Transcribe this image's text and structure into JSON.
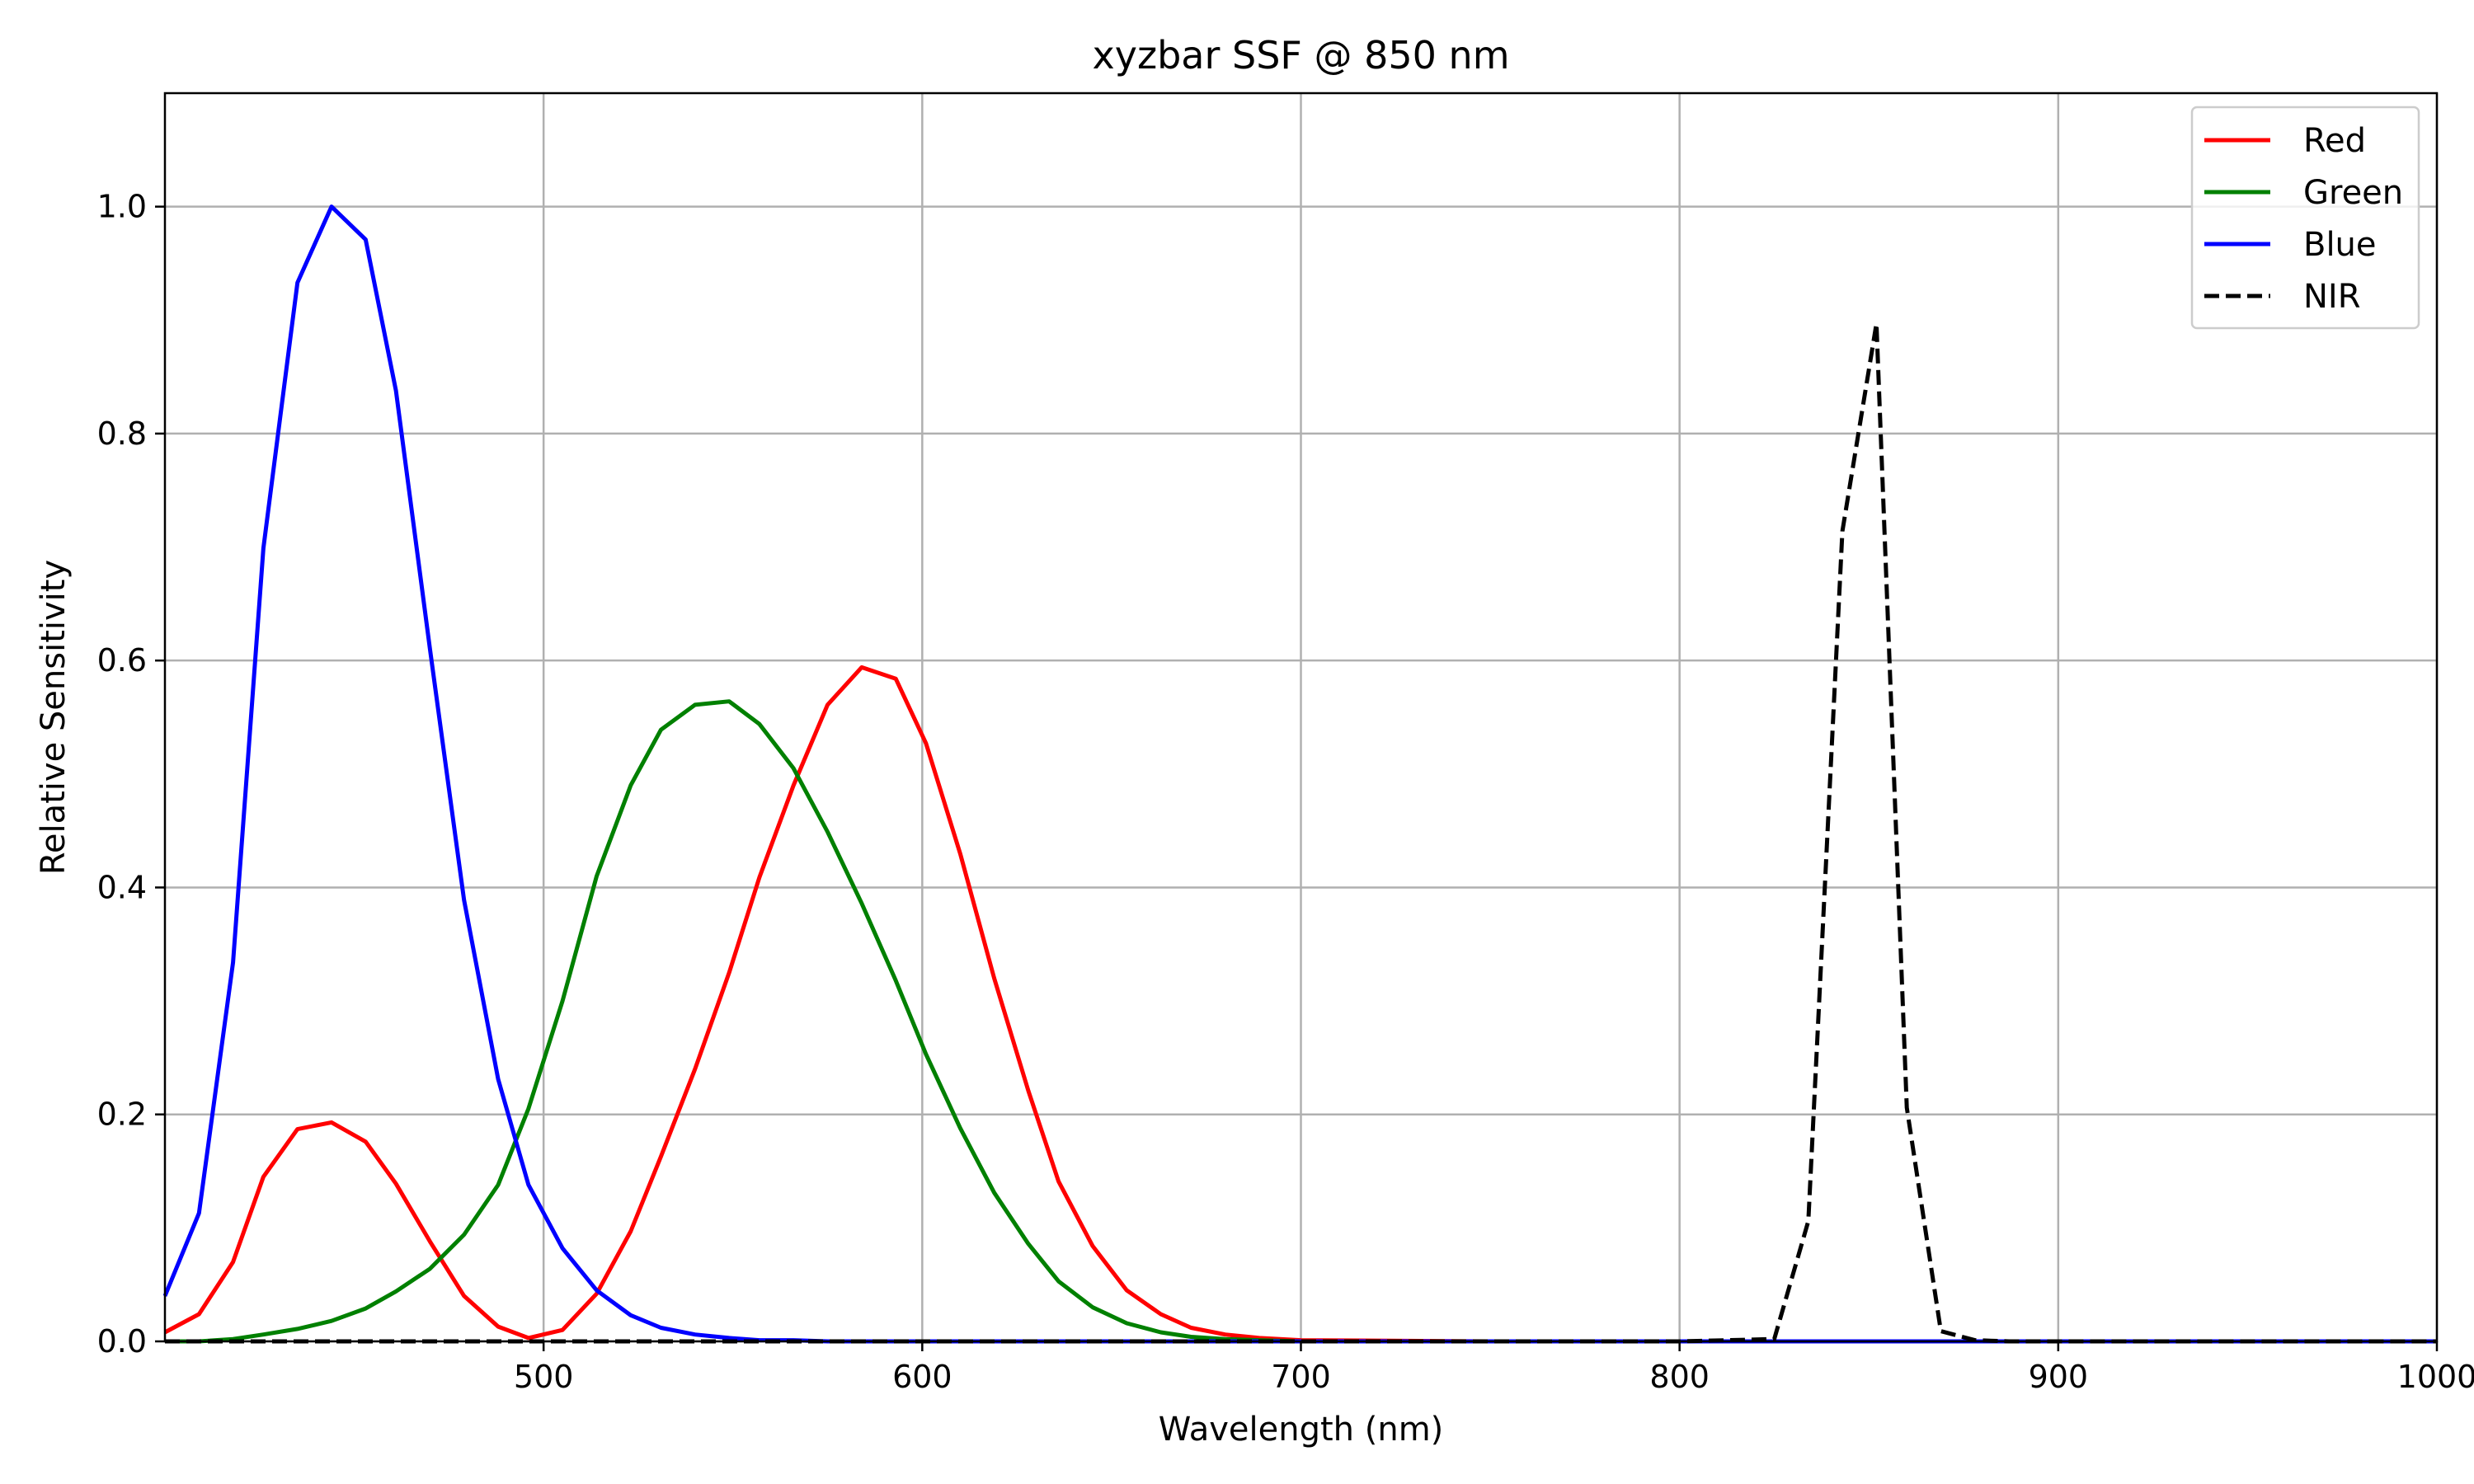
{
  "chart_data": {
    "type": "line",
    "title": "xyzbar SSF @ 850 nm",
    "xlabel": "Wavelength (nm)",
    "ylabel": "Relative Sensitivity",
    "xlim": [
      400,
      1000
    ],
    "ylim": [
      0,
      1.1
    ],
    "xticks": [
      500,
      600,
      700,
      800,
      900,
      1000
    ],
    "xtick_labels": [
      "500",
      "600",
      "700",
      "800",
      "900",
      "1000"
    ],
    "yticks": [
      0.0,
      0.2,
      0.4,
      0.6,
      0.8,
      1.0
    ],
    "ytick_labels": [
      "0.0",
      "0.2",
      "0.4",
      "0.6",
      "0.8",
      "1.0"
    ],
    "grid": true,
    "legend_position": "top-right",
    "series": [
      {
        "name": "Red",
        "color": "#ff0000",
        "dash": "solid",
        "x": [
          400,
          409,
          418,
          426,
          435,
          444,
          453,
          461,
          470,
          479,
          488,
          496,
          505,
          514,
          523,
          531,
          540,
          549,
          557,
          566,
          575,
          584,
          593,
          601,
          610,
          619,
          628,
          636,
          645,
          654,
          663,
          671,
          680,
          689,
          700,
          750,
          800,
          850,
          900,
          950,
          1000
        ],
        "values": [
          0.008,
          0.024,
          0.07,
          0.145,
          0.187,
          0.193,
          0.176,
          0.139,
          0.088,
          0.04,
          0.013,
          0.003,
          0.01,
          0.042,
          0.097,
          0.163,
          0.24,
          0.325,
          0.409,
          0.49,
          0.561,
          0.594,
          0.584,
          0.527,
          0.43,
          0.32,
          0.221,
          0.141,
          0.084,
          0.045,
          0.024,
          0.012,
          0.006,
          0.003,
          0.001,
          0.0,
          0.0,
          0.0,
          0.0,
          0.0,
          0.0
        ]
      },
      {
        "name": "Green",
        "color": "#008000",
        "dash": "solid",
        "x": [
          400,
          409,
          418,
          426,
          435,
          444,
          453,
          461,
          470,
          479,
          488,
          496,
          505,
          514,
          523,
          531,
          540,
          549,
          557,
          566,
          575,
          584,
          593,
          601,
          610,
          619,
          628,
          636,
          645,
          654,
          663,
          671,
          680,
          689,
          700,
          750,
          800,
          850,
          900,
          950,
          1000
        ],
        "values": [
          0.0,
          0.0,
          0.002,
          0.006,
          0.011,
          0.018,
          0.029,
          0.044,
          0.064,
          0.094,
          0.138,
          0.205,
          0.3,
          0.41,
          0.49,
          0.539,
          0.561,
          0.564,
          0.544,
          0.505,
          0.449,
          0.386,
          0.318,
          0.253,
          0.188,
          0.131,
          0.086,
          0.053,
          0.03,
          0.016,
          0.008,
          0.004,
          0.002,
          0.001,
          0.0,
          0.0,
          0.0,
          0.0,
          0.0,
          0.0,
          0.0
        ]
      },
      {
        "name": "Blue",
        "color": "#0000ff",
        "dash": "solid",
        "x": [
          400,
          409,
          418,
          426,
          435,
          444,
          453,
          461,
          470,
          479,
          488,
          496,
          505,
          514,
          523,
          531,
          540,
          549,
          557,
          566,
          575,
          584,
          593,
          601,
          610,
          650,
          700,
          750,
          800,
          850,
          900,
          950,
          1000
        ],
        "values": [
          0.04,
          0.113,
          0.334,
          0.699,
          0.933,
          1.0,
          0.971,
          0.838,
          0.61,
          0.389,
          0.231,
          0.138,
          0.082,
          0.045,
          0.023,
          0.012,
          0.006,
          0.003,
          0.001,
          0.001,
          0.0,
          0.0,
          0.0,
          0.0,
          0.0,
          0.0,
          0.0,
          0.0,
          0.0,
          0.0,
          0.0,
          0.0,
          0.0
        ]
      },
      {
        "name": "NIR",
        "color": "#000000",
        "dash": "dashed",
        "x": [
          400,
          500,
          600,
          700,
          800,
          825,
          834,
          843,
          852,
          860,
          869,
          878,
          887,
          900,
          1000
        ],
        "values": [
          0.0,
          0.0,
          0.0,
          0.0,
          0.0,
          0.002,
          0.106,
          0.714,
          0.897,
          0.206,
          0.009,
          0.001,
          0.0,
          0.0,
          0.0
        ]
      }
    ]
  }
}
